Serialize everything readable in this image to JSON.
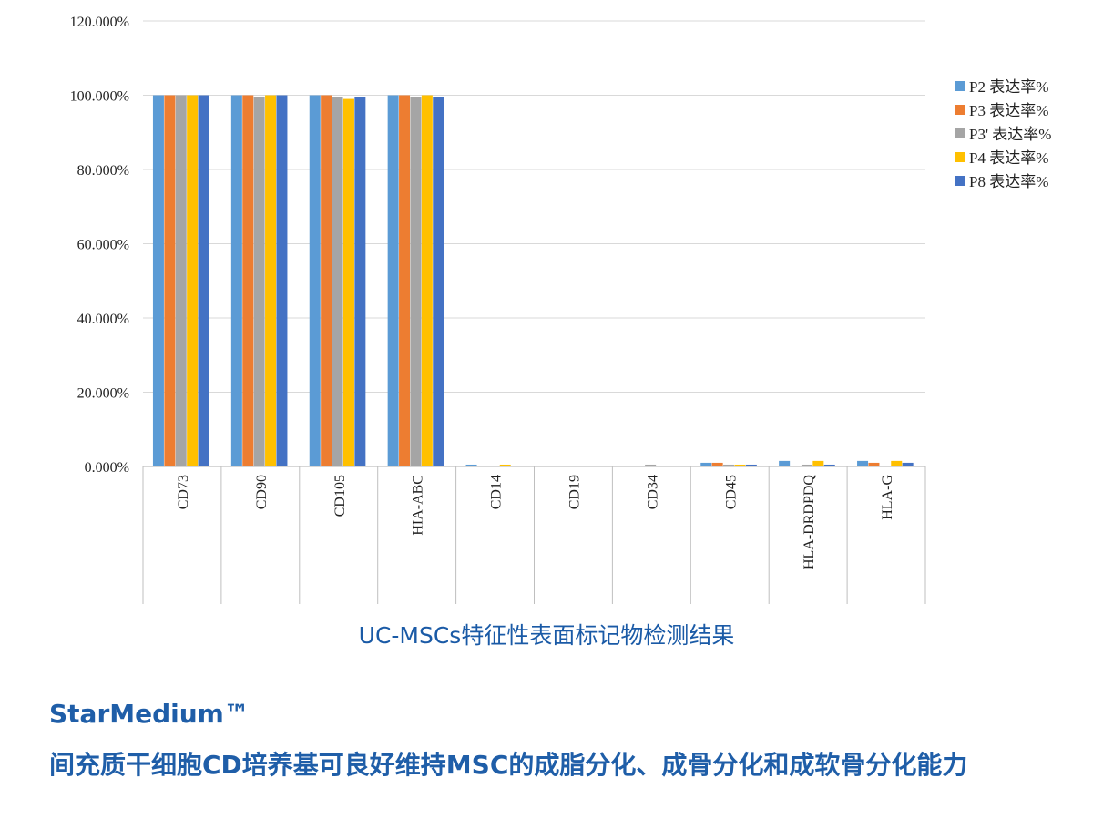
{
  "chart_data": {
    "type": "bar",
    "categories": [
      "CD73",
      "CD90",
      "CD105",
      "HIA-ABC",
      "CD14",
      "CD19",
      "CD34",
      "CD45",
      "HLA-DRDPDQ",
      "HLA-G"
    ],
    "series": [
      {
        "name": "P2 表达率%",
        "color": "#5b9bd5",
        "values": [
          100,
          100,
          100,
          100,
          0.5,
          0,
          0,
          1,
          1.5,
          1.5
        ]
      },
      {
        "name": "P3 表达率%",
        "color": "#ed7d31",
        "values": [
          100,
          100,
          100,
          100,
          0,
          0,
          0,
          1,
          0,
          1
        ]
      },
      {
        "name": "P3' 表达率%",
        "color": "#a5a5a5",
        "values": [
          100,
          99.5,
          99.5,
          99.5,
          0,
          0,
          0.5,
          0.5,
          0.5,
          0
        ]
      },
      {
        "name": "P4 表达率%",
        "color": "#ffc000",
        "values": [
          100,
          100,
          99,
          100,
          0.5,
          0,
          0,
          0.5,
          1.5,
          1.5
        ]
      },
      {
        "name": "P8 表达率%",
        "color": "#4472c4",
        "values": [
          100,
          100,
          99.5,
          99.5,
          0,
          0,
          0,
          0.5,
          0.5,
          1
        ]
      }
    ],
    "yticks": [
      "0.000%",
      "20.000%",
      "40.000%",
      "60.000%",
      "80.000%",
      "100.000%",
      "120.000%"
    ],
    "ylim": [
      0,
      120
    ],
    "grid": true,
    "legend_position": "right",
    "title": "",
    "xlabel": "",
    "ylabel": ""
  },
  "caption": "UC-MSCs特征性表面标记物检测结果",
  "heading_line1": "StarMedium™",
  "heading_line2": "间充质干细胞CD培养基可良好维持MSC的成脂分化、成骨分化和成软骨分化能力"
}
